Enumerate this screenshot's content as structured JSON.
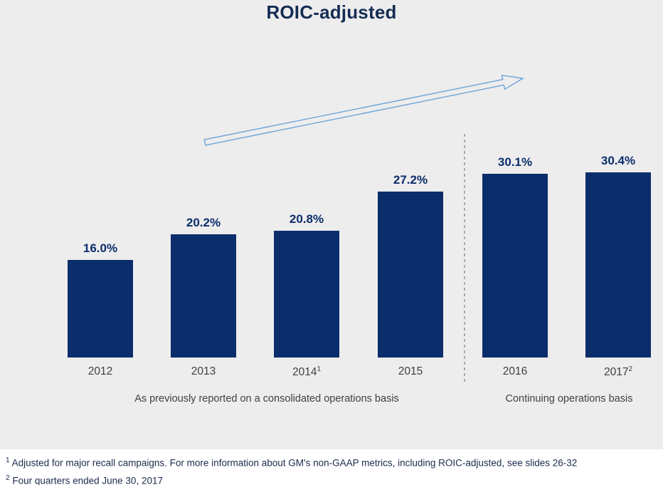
{
  "title": "ROIC-adjusted",
  "colors": {
    "bar": "#0c2d6b",
    "value_label": "#0c2d6b",
    "arrow_accent": "#6ba4d8",
    "separator": "#7f7f7f",
    "background": "#ededed",
    "footnote_band": "#ffffff"
  },
  "chart_data": {
    "type": "bar",
    "title": "ROIC-adjusted",
    "categories": [
      "2012",
      "2013",
      "2014",
      "2015",
      "2016",
      "2017"
    ],
    "category_superscripts": [
      "",
      "",
      "1",
      "",
      "",
      "2"
    ],
    "values": [
      16.0,
      20.2,
      20.8,
      27.2,
      30.1,
      30.4
    ],
    "value_labels": [
      "16.0%",
      "20.2%",
      "20.8%",
      "27.2%",
      "30.1%",
      "30.4%"
    ],
    "ylim": [
      0,
      32
    ],
    "grid": false,
    "legend": "none",
    "separator_after_index": 3,
    "annotations": [
      "upward trend arrow"
    ],
    "group_captions": [
      "As previously reported on a consolidated operations basis",
      "Continuing operations basis"
    ]
  },
  "footnotes": [
    {
      "marker": "1",
      "text": "Adjusted for major recall campaigns. For more information about GM's non-GAAP metrics, including ROIC-adjusted, see slides 26-32"
    },
    {
      "marker": "2",
      "text": "Four quarters ended June 30, 2017"
    }
  ]
}
